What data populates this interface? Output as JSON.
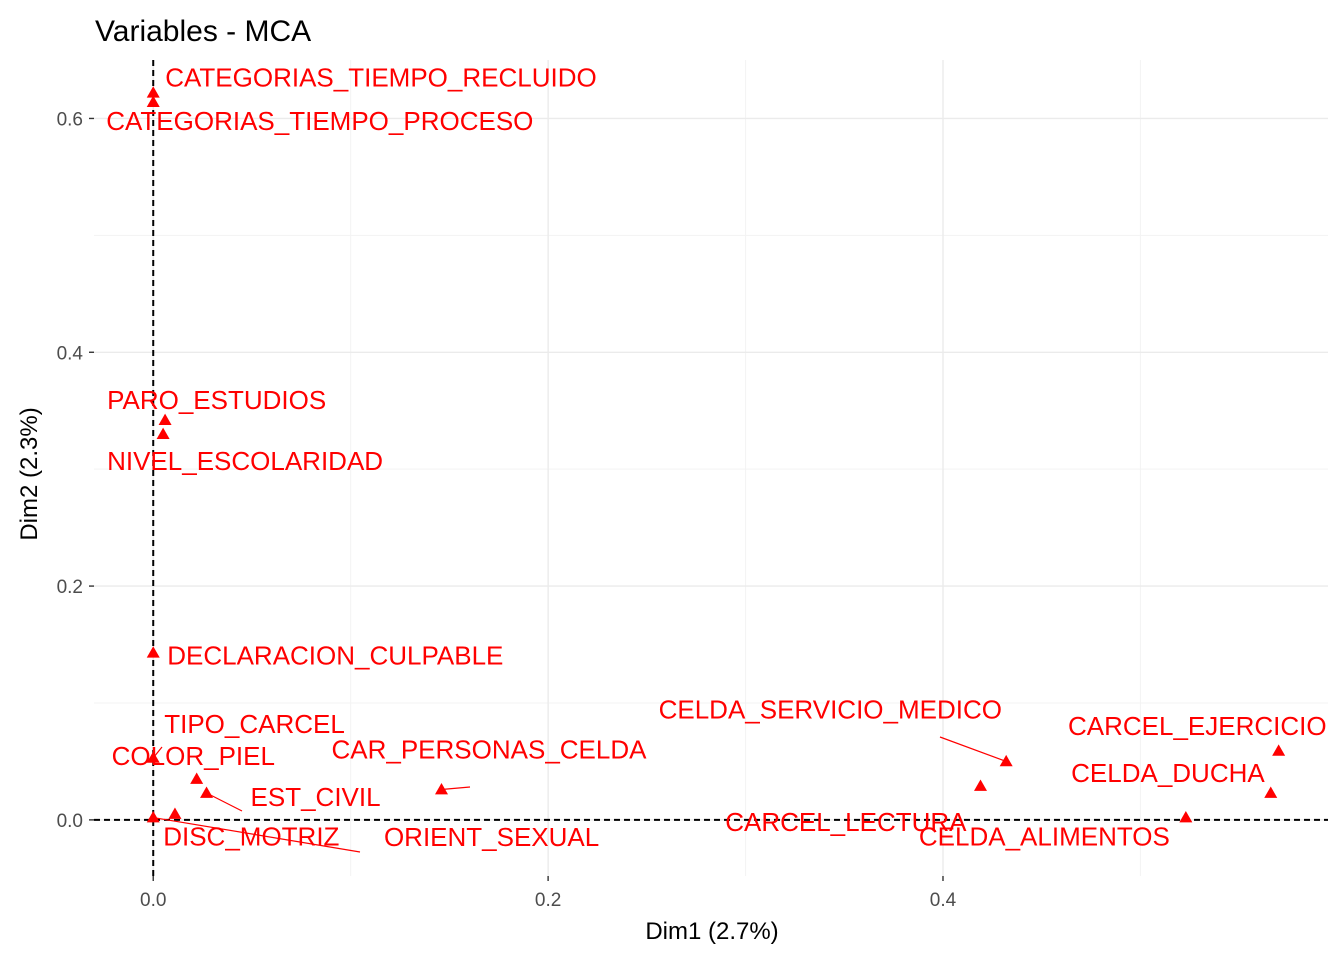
{
  "chart_data": {
    "type": "scatter",
    "title": "Variables - MCA",
    "xlabel": "Dim1 (2.7%)",
    "ylabel": "Dim2 (2.3%)",
    "xlim": [
      -0.03,
      0.595
    ],
    "ylim": [
      -0.048,
      0.65
    ],
    "x_ticks": [
      0.0,
      0.2,
      0.4
    ],
    "y_ticks": [
      0.0,
      0.2,
      0.4,
      0.6
    ],
    "x_tick_labels": [
      "0.0",
      "0.2",
      "0.4"
    ],
    "y_tick_labels": [
      "0.0",
      "0.2",
      "0.4",
      "0.6"
    ],
    "grid": true,
    "reference_lines": {
      "x": 0,
      "y": 0
    },
    "point_color": "#ff0000",
    "marker": "triangle",
    "points": [
      {
        "label": "CATEGORIAS_TIEMPO_RECLUIDO",
        "x": 0.0,
        "y": 0.622
      },
      {
        "label": "CATEGORIAS_TIEMPO_PROCESO",
        "x": 0.0,
        "y": 0.614
      },
      {
        "label": "PARO_ESTUDIOS",
        "x": 0.006,
        "y": 0.342
      },
      {
        "label": "NIVEL_ESCOLARIDAD",
        "x": 0.005,
        "y": 0.33
      },
      {
        "label": "DECLARACION_CULPABLE",
        "x": 0.0,
        "y": 0.143
      },
      {
        "label": "TIPO_CARCEL",
        "x": 0.0,
        "y": 0.053
      },
      {
        "label": "COLOR_PIEL",
        "x": 0.022,
        "y": 0.035
      },
      {
        "label": "EST_CIVIL",
        "x": 0.027,
        "y": 0.023
      },
      {
        "label": "CAR_PERSONAS_CELDA",
        "x": 0.146,
        "y": 0.026
      },
      {
        "label": "DISC_MOTRIZ",
        "x": 0.0,
        "y": 0.002
      },
      {
        "label": "ORIENT_SEXUAL",
        "x": 0.011,
        "y": 0.005
      },
      {
        "label": "CELDA_SERVICIO_MEDICO",
        "x": 0.432,
        "y": 0.05
      },
      {
        "label": "CARCEL_LECTURA",
        "x": 0.419,
        "y": 0.029
      },
      {
        "label": "CARCEL_EJERCICIO",
        "x": 0.57,
        "y": 0.059
      },
      {
        "label": "CELDA_DUCHA",
        "x": 0.566,
        "y": 0.023
      },
      {
        "label": "CELDA_ALIMENTOS",
        "x": 0.523,
        "y": 0.002
      }
    ]
  }
}
